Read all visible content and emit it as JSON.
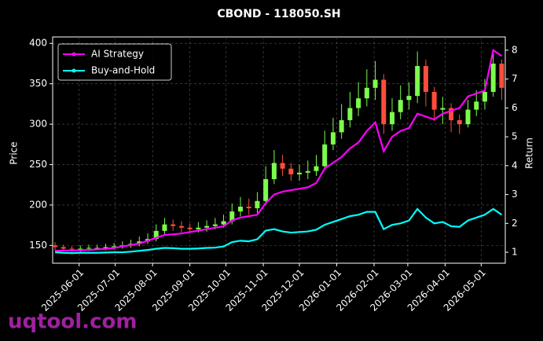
{
  "chart_data": {
    "type": "candlestick",
    "title": "CBOND - 118050.SH",
    "ylabel": "Price",
    "y2label": "Return",
    "watermark": "uqtool.com",
    "up_color": "#7cfc4c",
    "down_color": "#ff4d3a",
    "grid": true,
    "legend": "upper left",
    "xlim": [
      "2025-05-10",
      "2026-05-21"
    ],
    "xticks": [
      "2025-06-01",
      "2025-07-01",
      "2025-08-01",
      "2025-09-01",
      "2025-10-01",
      "2025-11-01",
      "2025-12-01",
      "2026-01-01",
      "2026-02-01",
      "2026-03-01",
      "2026-04-01",
      "2026-05-01"
    ],
    "ylim": [
      128,
      408
    ],
    "yticks": [
      150,
      200,
      250,
      300,
      350,
      400
    ],
    "y2lim": [
      0.62,
      8.46
    ],
    "y2ticks": [
      1,
      2,
      3,
      4,
      5,
      6,
      7,
      8
    ],
    "x": [
      "2025-05-12",
      "2025-05-19",
      "2025-05-26",
      "2025-06-02",
      "2025-06-09",
      "2025-06-16",
      "2025-06-23",
      "2025-06-30",
      "2025-07-07",
      "2025-07-14",
      "2025-07-21",
      "2025-07-28",
      "2025-08-04",
      "2025-08-11",
      "2025-08-18",
      "2025-08-25",
      "2025-09-01",
      "2025-09-08",
      "2025-09-15",
      "2025-09-22",
      "2025-09-29",
      "2025-10-06",
      "2025-10-13",
      "2025-10-20",
      "2025-10-27",
      "2025-11-03",
      "2025-11-10",
      "2025-11-17",
      "2025-11-24",
      "2025-12-01",
      "2025-12-08",
      "2025-12-15",
      "2025-12-22",
      "2025-12-29",
      "2026-01-05",
      "2026-01-12",
      "2026-01-19",
      "2026-01-26",
      "2026-02-02",
      "2026-02-09",
      "2026-02-16",
      "2026-02-23",
      "2026-03-02",
      "2026-03-09",
      "2026-03-16",
      "2026-03-23",
      "2026-03-30",
      "2026-04-06",
      "2026-04-13",
      "2026-04-20",
      "2026-04-27",
      "2026-05-04",
      "2026-05-11",
      "2026-05-18"
    ],
    "open": [
      150,
      148,
      146,
      145,
      146,
      147,
      147,
      148,
      149,
      150,
      152,
      155,
      158,
      168,
      176,
      174,
      172,
      170,
      172,
      174,
      176,
      180,
      192,
      198,
      196,
      205,
      232,
      252,
      245,
      238,
      240,
      242,
      248,
      275,
      290,
      305,
      320,
      332,
      345,
      355,
      300,
      315,
      330,
      335,
      372,
      340,
      318,
      320,
      305,
      300,
      318,
      328,
      340,
      375
    ],
    "high": [
      154,
      151,
      149,
      150,
      151,
      151,
      152,
      153,
      155,
      157,
      161,
      165,
      176,
      184,
      182,
      180,
      177,
      179,
      181,
      184,
      188,
      202,
      210,
      208,
      216,
      248,
      268,
      262,
      252,
      250,
      255,
      262,
      292,
      308,
      325,
      340,
      352,
      368,
      378,
      362,
      332,
      348,
      352,
      390,
      380,
      346,
      334,
      326,
      312,
      330,
      342,
      356,
      392,
      380
    ],
    "low": [
      144,
      143,
      142,
      142,
      143,
      144,
      144,
      145,
      146,
      147,
      149,
      152,
      155,
      164,
      168,
      166,
      165,
      166,
      167,
      170,
      172,
      176,
      186,
      188,
      190,
      200,
      226,
      236,
      230,
      230,
      232,
      236,
      244,
      268,
      282,
      296,
      310,
      322,
      330,
      288,
      292,
      306,
      318,
      326,
      322,
      304,
      300,
      290,
      288,
      296,
      310,
      318,
      334,
      330
    ],
    "close": [
      148,
      146,
      145,
      146,
      147,
      147,
      148,
      149,
      150,
      152,
      155,
      158,
      168,
      176,
      174,
      172,
      170,
      172,
      174,
      176,
      180,
      192,
      198,
      196,
      205,
      232,
      252,
      245,
      238,
      240,
      242,
      248,
      275,
      290,
      305,
      320,
      332,
      345,
      355,
      300,
      315,
      330,
      335,
      372,
      340,
      318,
      320,
      305,
      300,
      318,
      328,
      340,
      375,
      345
    ],
    "series": [
      {
        "name": "AI Strategy",
        "color": "#ff00ff",
        "axis": "y2",
        "values": [
          1.05,
          1.06,
          1.06,
          1.07,
          1.08,
          1.1,
          1.12,
          1.15,
          1.2,
          1.25,
          1.3,
          1.4,
          1.5,
          1.6,
          1.62,
          1.65,
          1.7,
          1.75,
          1.8,
          1.85,
          1.9,
          2.1,
          2.2,
          2.25,
          2.3,
          2.7,
          3.0,
          3.1,
          3.15,
          3.2,
          3.25,
          3.4,
          3.9,
          4.1,
          4.3,
          4.6,
          4.8,
          5.2,
          5.5,
          4.5,
          5.0,
          5.2,
          5.3,
          5.8,
          5.7,
          5.6,
          5.8,
          5.9,
          6.0,
          6.4,
          6.5,
          6.6,
          8.0,
          7.8
        ]
      },
      {
        "name": "Buy-and-Hold",
        "color": "#00ffff",
        "axis": "y2",
        "values": [
          1.0,
          0.98,
          0.97,
          0.98,
          0.98,
          0.98,
          0.99,
          1.0,
          1.0,
          1.02,
          1.05,
          1.08,
          1.12,
          1.15,
          1.14,
          1.12,
          1.12,
          1.13,
          1.15,
          1.16,
          1.2,
          1.35,
          1.4,
          1.38,
          1.45,
          1.75,
          1.8,
          1.72,
          1.68,
          1.7,
          1.72,
          1.78,
          1.95,
          2.05,
          2.15,
          2.25,
          2.3,
          2.4,
          2.4,
          1.8,
          1.95,
          2.0,
          2.1,
          2.5,
          2.2,
          2.0,
          2.05,
          1.9,
          1.88,
          2.1,
          2.2,
          2.3,
          2.5,
          2.3
        ]
      }
    ]
  }
}
